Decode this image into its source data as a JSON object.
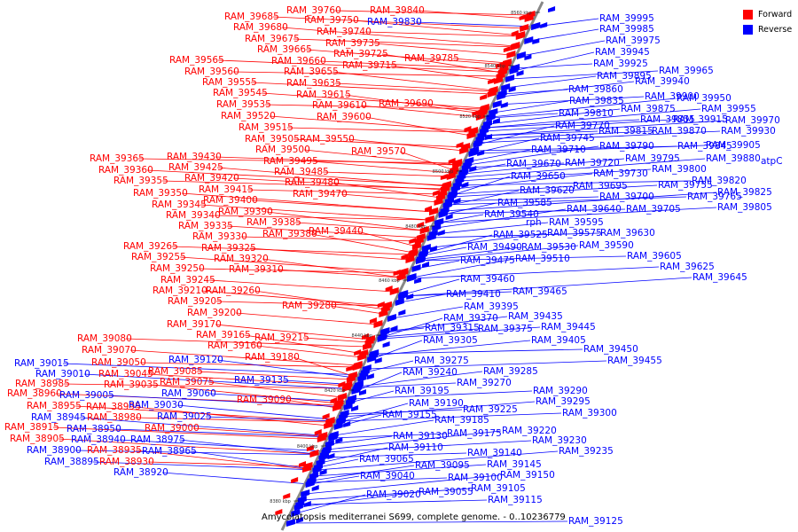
{
  "caption": "Amycolatopsis mediterranei S699, complete genome. - 0..10236779",
  "legend": [
    {
      "label": "Forward",
      "color": "#ff0000"
    },
    {
      "label": "Reverse",
      "color": "#0000ff"
    }
  ],
  "colors": {
    "forward": "#ff0000",
    "reverse": "#0000ff",
    "backbone": "#888888"
  },
  "ticks": [
    "8380 kbp",
    "8400 kbp",
    "8420 kbp",
    "8440 kbp",
    "8460 kbp",
    "8480 kbp",
    "8500 kbp",
    "8520 kbp",
    "8540 kbp",
    "8560 kbp"
  ],
  "forward_labels": [
    [
      "RAM_39760",
      323,
      11
    ],
    [
      "RAM_39840",
      417,
      11
    ],
    [
      "RAM_39685",
      253,
      18
    ],
    [
      "RAM_39750",
      343,
      22
    ],
    [
      "RAM_39680",
      263,
      30
    ],
    [
      "RAM_39740",
      357,
      35
    ],
    [
      "RAM_39675",
      276,
      43
    ],
    [
      "RAM_39735",
      367,
      48
    ],
    [
      "RAM_39665",
      290,
      55
    ],
    [
      "RAM_39725",
      376,
      60
    ],
    [
      "RAM_39785",
      456,
      65
    ],
    [
      "RAM_39660",
      306,
      68
    ],
    [
      "RAM_39565",
      191,
      67
    ],
    [
      "RAM_39715",
      386,
      73
    ],
    [
      "RAM_39655",
      320,
      80
    ],
    [
      "RAM_39560",
      208,
      80
    ],
    [
      "RAM_39635",
      323,
      93
    ],
    [
      "RAM_39555",
      228,
      92
    ],
    [
      "RAM_39545",
      240,
      104
    ],
    [
      "RAM_39615",
      334,
      106
    ],
    [
      "RAM_39535",
      244,
      117
    ],
    [
      "RAM_39690",
      427,
      116
    ],
    [
      "RAM_39610",
      352,
      118
    ],
    [
      "RAM_39520",
      249,
      130
    ],
    [
      "RAM_39600",
      357,
      131
    ],
    [
      "RAM_39515",
      269,
      143
    ],
    [
      "RAM_39505",
      276,
      156
    ],
    [
      "RAM_39550",
      338,
      156
    ],
    [
      "RAM_39500",
      288,
      168
    ],
    [
      "RAM_39570",
      396,
      170
    ],
    [
      "RAM_39365",
      101,
      178
    ],
    [
      "RAM_39430",
      188,
      176
    ],
    [
      "RAM_39495",
      297,
      181
    ],
    [
      "RAM_39360",
      111,
      191
    ],
    [
      "RAM_39425",
      190,
      188
    ],
    [
      "RAM_39485",
      309,
      193
    ],
    [
      "RAM_39355",
      128,
      203
    ],
    [
      "RAM_39420",
      208,
      200
    ],
    [
      "RAM_39480",
      321,
      205
    ],
    [
      "RAM_39350",
      150,
      217
    ],
    [
      "RAM_39415",
      224,
      213
    ],
    [
      "RAM_39470",
      330,
      218
    ],
    [
      "RAM_39400",
      229,
      225
    ],
    [
      "RAM_39345",
      171,
      230
    ],
    [
      "RAM_39390",
      246,
      238
    ],
    [
      "RAM_39340",
      187,
      242
    ],
    [
      "RAM_39385",
      278,
      250
    ],
    [
      "RAM_39335",
      201,
      254
    ],
    [
      "RAM_39440",
      348,
      260
    ],
    [
      "RAM_39380",
      296,
      263
    ],
    [
      "RAM_39330",
      217,
      266
    ],
    [
      "RAM_39265",
      139,
      277
    ],
    [
      "RAM_39325",
      227,
      279
    ],
    [
      "RAM_39255",
      148,
      289
    ],
    [
      "RAM_39320",
      241,
      291
    ],
    [
      "RAM_39250",
      169,
      302
    ],
    [
      "RAM_39310",
      258,
      303
    ],
    [
      "RAM_39245",
      181,
      315
    ],
    [
      "RAM_39210",
      172,
      327
    ],
    [
      "RAM_39260",
      232,
      327
    ],
    [
      "RAM_39205",
      189,
      339
    ],
    [
      "RAM_39280",
      318,
      344
    ],
    [
      "RAM_39200",
      211,
      352
    ],
    [
      "RAM_39170",
      188,
      365
    ],
    [
      "RAM_39165",
      221,
      377
    ],
    [
      "RAM_39215",
      287,
      380
    ],
    [
      "RAM_39080",
      87,
      381
    ],
    [
      "RAM_39160",
      234,
      389
    ],
    [
      "RAM_39070",
      92,
      394
    ],
    [
      "RAM_39180",
      276,
      402
    ],
    [
      "RAM_39050",
      103,
      408
    ],
    [
      "RAM_39085",
      167,
      418
    ],
    [
      "RAM_39045",
      111,
      421
    ],
    [
      "RAM_39075",
      180,
      430
    ],
    [
      "RAM_39035",
      117,
      433
    ],
    [
      "RAM_38985",
      17,
      432
    ],
    [
      "RAM_39090",
      267,
      450
    ],
    [
      "RAM_38960",
      8,
      443
    ],
    [
      "RAM_38955",
      30,
      457
    ],
    [
      "RAM_38995",
      97,
      458
    ],
    [
      "RAM_38980",
      98,
      470
    ],
    [
      "RAM_39000",
      163,
      482
    ],
    [
      "RAM_38915",
      5,
      481
    ],
    [
      "RAM_38905",
      11,
      494
    ],
    [
      "RAM_38935",
      98,
      507
    ],
    [
      "RAM_38930",
      112,
      520
    ]
  ],
  "reverse_labels": [
    [
      "RAM_39830",
      414,
      24
    ],
    [
      "RAM_39995",
      676,
      20
    ],
    [
      "RAM_39985",
      676,
      32
    ],
    [
      "RAM_39975",
      683,
      45
    ],
    [
      "RAM_39945",
      671,
      58
    ],
    [
      "RAM_39925",
      669,
      71
    ],
    [
      "RAM_39965",
      743,
      79
    ],
    [
      "RAM_39895",
      673,
      85
    ],
    [
      "RAM_39940",
      716,
      91
    ],
    [
      "RAM_39950",
      763,
      110
    ],
    [
      "RAM_39860",
      641,
      100
    ],
    [
      "RAM_39900",
      727,
      108
    ],
    [
      "RAM_39835",
      642,
      113
    ],
    [
      "RAM_39875",
      700,
      122
    ],
    [
      "RAM_39955",
      791,
      122
    ],
    [
      "RAM_39810",
      630,
      127
    ],
    [
      "RAM_39855",
      722,
      134
    ],
    [
      "RAM_39915",
      759,
      134
    ],
    [
      "RAM_39970",
      818,
      135
    ],
    [
      "RAM_39770",
      626,
      141
    ],
    [
      "RAM_39815",
      675,
      147
    ],
    [
      "RAM_39870",
      735,
      147
    ],
    [
      "RAM_39930",
      813,
      147
    ],
    [
      "RAM_39745",
      609,
      155
    ],
    [
      "RAM_39790",
      676,
      164
    ],
    [
      "RAM_39845",
      764,
      164
    ],
    [
      "RAM_39905",
      796,
      163
    ],
    [
      "RAM_39710",
      599,
      168
    ],
    [
      "RAM_39795",
      705,
      178
    ],
    [
      "RAM_39880",
      796,
      178
    ],
    [
      "RAM_39720",
      637,
      183
    ],
    [
      "RAM_39670",
      571,
      184
    ],
    [
      "RAM_39800",
      735,
      190
    ],
    [
      "RAM_39730",
      669,
      195
    ],
    [
      "RAM_39650",
      576,
      198
    ],
    [
      "RAM_39820",
      780,
      203
    ],
    [
      "RAM_39695",
      646,
      209
    ],
    [
      "RAM_39755",
      742,
      208
    ],
    [
      "RAM_39620",
      586,
      214
    ],
    [
      "RAM_39825",
      809,
      216
    ],
    [
      "RAM_39700",
      676,
      221
    ],
    [
      "RAM_39765",
      775,
      221
    ],
    [
      "RAM_39585",
      561,
      228
    ],
    [
      "RAM_39805",
      809,
      233
    ],
    [
      "RAM_39640",
      639,
      235
    ],
    [
      "RAM_39705",
      706,
      235
    ],
    [
      "RAM_39540",
      546,
      241
    ],
    [
      "RAM_39595",
      619,
      250
    ],
    [
      "RAM_39575",
      617,
      262
    ],
    [
      "RAM_39525",
      556,
      264
    ],
    [
      "RAM_39630",
      677,
      262
    ],
    [
      "RAM_39490",
      527,
      278
    ],
    [
      "RAM_39530",
      588,
      278
    ],
    [
      "RAM_39590",
      653,
      276
    ],
    [
      "RAM_39510",
      581,
      291
    ],
    [
      "RAM_39605",
      707,
      288
    ],
    [
      "RAM_39475",
      519,
      293
    ],
    [
      "RAM_39625",
      744,
      300
    ],
    [
      "RAM_39460",
      519,
      314
    ],
    [
      "RAM_39645",
      781,
      312
    ],
    [
      "RAM_39465",
      578,
      328
    ],
    [
      "RAM_39410",
      503,
      331
    ],
    [
      "RAM_39395",
      523,
      345
    ],
    [
      "RAM_39435",
      573,
      356
    ],
    [
      "RAM_39370",
      500,
      358
    ],
    [
      "RAM_39315",
      479,
      369
    ],
    [
      "RAM_39375",
      539,
      370
    ],
    [
      "RAM_39445",
      610,
      368
    ],
    [
      "RAM_39405",
      599,
      383
    ],
    [
      "RAM_39305",
      477,
      383
    ],
    [
      "RAM_39450",
      658,
      393
    ],
    [
      "RAM_39455",
      685,
      406
    ],
    [
      "RAM_39275",
      467,
      406
    ],
    [
      "RAM_39285",
      545,
      418
    ],
    [
      "RAM_39240",
      454,
      419
    ],
    [
      "RAM_39270",
      515,
      431
    ],
    [
      "RAM_39290",
      601,
      440
    ],
    [
      "RAM_39195",
      445,
      440
    ],
    [
      "RAM_39295",
      604,
      452
    ],
    [
      "RAM_39190",
      461,
      454
    ],
    [
      "RAM_39225",
      522,
      461
    ],
    [
      "RAM_39300",
      634,
      465
    ],
    [
      "RAM_39155",
      431,
      467
    ],
    [
      "RAM_39185",
      490,
      473
    ],
    [
      "RAM_39220",
      566,
      485
    ],
    [
      "RAM_39175",
      504,
      488
    ],
    [
      "RAM_39130",
      443,
      491
    ],
    [
      "RAM_39230",
      600,
      496
    ],
    [
      "RAM_39110",
      438,
      504
    ],
    [
      "RAM_39235",
      630,
      508
    ],
    [
      "RAM_39140",
      527,
      510
    ],
    [
      "RAM_39065",
      405,
      517
    ],
    [
      "RAM_39145",
      549,
      523
    ],
    [
      "RAM_39095",
      468,
      524
    ],
    [
      "RAM_39150",
      564,
      535
    ],
    [
      "RAM_39100",
      505,
      538
    ],
    [
      "RAM_39040",
      406,
      536
    ],
    [
      "RAM_39105",
      531,
      550
    ],
    [
      "RAM_39055",
      472,
      554
    ],
    [
      "RAM_39020",
      413,
      557
    ],
    [
      "RAM_39115",
      550,
      563
    ],
    [
      "RAM_39125",
      641,
      587
    ],
    [
      "RAM_39015",
      16,
      409
    ],
    [
      "RAM_39010",
      40,
      421
    ],
    [
      "RAM_39120",
      190,
      405
    ],
    [
      "RAM_39135",
      264,
      428
    ],
    [
      "RAM_39060",
      182,
      443
    ],
    [
      "RAM_39005",
      67,
      445
    ],
    [
      "RAM_39030",
      145,
      456
    ],
    [
      "RAM_38945",
      35,
      470
    ],
    [
      "RAM_39025",
      177,
      469
    ],
    [
      "RAM_38950",
      75,
      483
    ],
    [
      "RAM_38940",
      80,
      495
    ],
    [
      "RAM_38975",
      147,
      495
    ],
    [
      "RAM_38965",
      160,
      508
    ],
    [
      "RAM_38900",
      30,
      507
    ],
    [
      "RAM_38895",
      50,
      520
    ],
    [
      "RAM_38920",
      128,
      532
    ]
  ],
  "named_genes": [
    [
      "rph",
      593,
      250
    ],
    [
      "atpC",
      858,
      181
    ]
  ]
}
